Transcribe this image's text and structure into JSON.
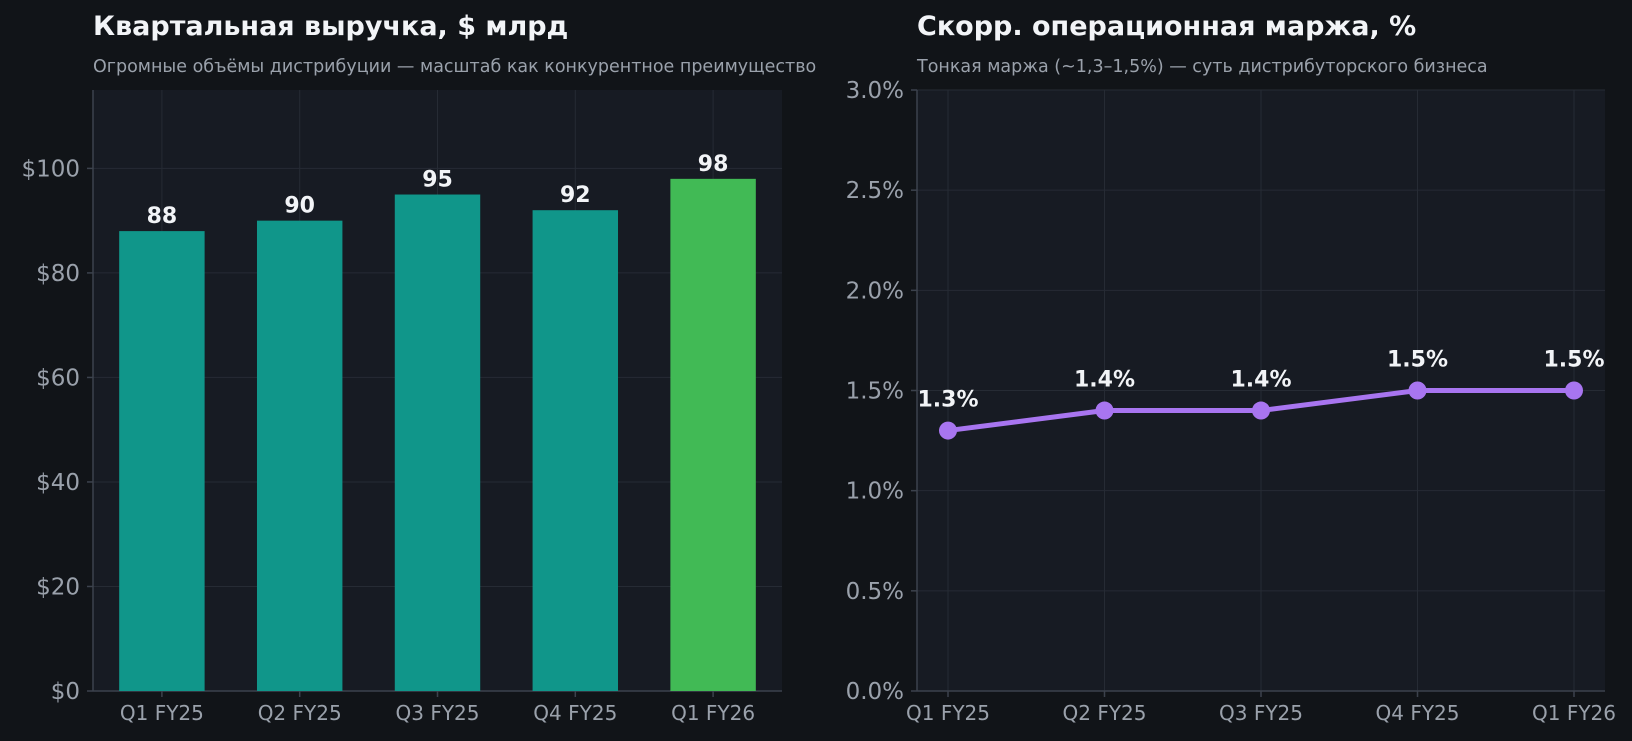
{
  "colors": {
    "page_bg": "#111418",
    "plot_bg": "#171b23",
    "grid": "#262b34",
    "axis": "#3c424d",
    "bar": "#10968a",
    "bar_highlight": "#41ba55",
    "line": "#a875f0",
    "text": "#f2f4f7",
    "muted": "#9aa1ab"
  },
  "chart_data": [
    {
      "type": "bar",
      "title": "Квартальная выручка, $ млрд",
      "subtitle": "Огромные объёмы дистрибуции — масштаб как конкурентное преимущество",
      "categories": [
        "Q1 FY25",
        "Q2 FY25",
        "Q3 FY25",
        "Q4 FY25",
        "Q1 FY26"
      ],
      "values": [
        88,
        90,
        95,
        92,
        98
      ],
      "data_labels": [
        "88",
        "90",
        "95",
        "92",
        "98"
      ],
      "highlight_index": 4,
      "ylim": [
        0,
        115
      ],
      "yticks": [
        0,
        20,
        40,
        60,
        80,
        100
      ],
      "ytick_labels": [
        "$0",
        "$20",
        "$40",
        "$60",
        "$80",
        "$100"
      ],
      "grid": true
    },
    {
      "type": "line",
      "title": "Скорр. операционная маржа, %",
      "subtitle": "Тонкая маржа (~1,3–1,5%) — суть дистрибуторского бизнеса",
      "categories": [
        "Q1 FY25",
        "Q2 FY25",
        "Q3 FY25",
        "Q4 FY25",
        "Q1 FY26"
      ],
      "values": [
        1.3,
        1.4,
        1.4,
        1.5,
        1.5
      ],
      "data_labels": [
        "1.3%",
        "1.4%",
        "1.4%",
        "1.5%",
        "1.5%"
      ],
      "ylim": [
        0,
        3.0
      ],
      "yticks": [
        0,
        0.5,
        1.0,
        1.5,
        2.0,
        2.5,
        3.0
      ],
      "ytick_labels": [
        "0.0%",
        "0.5%",
        "1.0%",
        "1.5%",
        "2.0%",
        "2.5%",
        "3.0%"
      ],
      "grid": true
    }
  ]
}
